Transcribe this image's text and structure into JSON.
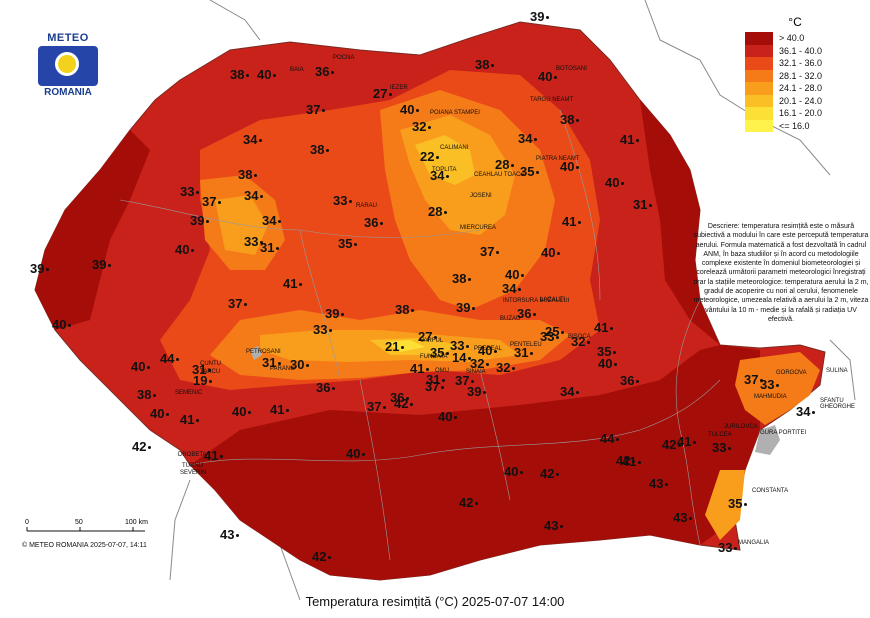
{
  "logo": {
    "top_text": "METEO",
    "bottom_text": "ROMANIA"
  },
  "legend": {
    "unit": "°C",
    "items": [
      {
        "label": "> 40.0",
        "color": "#a50d08"
      },
      {
        "label": "36.1 - 40.0",
        "color": "#c9221a"
      },
      {
        "label": "32.1 - 36.0",
        "color": "#ea4a18"
      },
      {
        "label": "28.1 - 32.0",
        "color": "#f57a18"
      },
      {
        "label": "24.1 - 28.0",
        "color": "#f99d1c"
      },
      {
        "label": "20.1 - 24.0",
        "color": "#fbbf26"
      },
      {
        "label": "16.1 - 20.0",
        "color": "#fde035"
      },
      {
        "label": "<= 16.0",
        "color": "#fff24a"
      }
    ]
  },
  "description": "Descriere: temperatura resimțită este o măsură subiectivă a modului în care este percepută temperatura aerului. Formula matematică a fost dezvoltată în cadrul ANM, în baza studiilor și în acord cu metodologiile complexe existente în domeniul biometeorologiei și corelează următorii parametri meteorologici înregistrați orar la stațiile meteorologice: temperatura aerului la 2 m, gradul de acoperire cu nori al cerului, fenomenele meteorologice, umezeala relativă a aerului la 2 m, viteza vântului la 10 m - medie și la rafală și radiația UV efectivă.",
  "title": "Temperatura resimțită (°C) 2025-07-07 14:00",
  "copyright": "© METEO ROMANIA 2025-07-07, 14:11",
  "scale": {
    "ticks": [
      "0",
      "50",
      "100 km"
    ]
  },
  "values": [
    "39",
    "40",
    "36",
    "38",
    "27",
    "38",
    "40",
    "37",
    "40",
    "32",
    "34",
    "38",
    "34",
    "38",
    "22",
    "41",
    "28",
    "40",
    "38",
    "34",
    "34",
    "35",
    "40",
    "31",
    "33",
    "37",
    "39",
    "34",
    "28",
    "41",
    "33",
    "36",
    "31",
    "35",
    "33",
    "37",
    "40",
    "40",
    "39",
    "39",
    "38",
    "41",
    "40",
    "34",
    "37",
    "39",
    "38",
    "36",
    "27",
    "41",
    "39",
    "33",
    "21",
    "35",
    "40",
    "33",
    "31",
    "33",
    "14",
    "40",
    "25",
    "32",
    "35",
    "40",
    "32",
    "41",
    "36",
    "31",
    "30",
    "37",
    "31",
    "32",
    "40",
    "44",
    "19",
    "36",
    "39",
    "37",
    "42",
    "37",
    "36",
    "34",
    "31",
    "38",
    "41",
    "40",
    "41",
    "40",
    "40",
    "44",
    "37",
    "33",
    "34",
    "33",
    "40",
    "42",
    "41",
    "42",
    "41",
    "41",
    "40",
    "35",
    "42",
    "42",
    "43",
    "42",
    "43",
    "43",
    "43",
    "42",
    "33"
  ],
  "city_labels": [
    "POCNA",
    "BAIA",
    "TURNU",
    "SEVERIN",
    "DROBETA",
    "CONSTANTA",
    "MANGALIA",
    "SULINA",
    "TULCEA",
    "GORGOVA",
    "MAHMUDIA",
    "JURILOVCA",
    "GURA PORTITEI",
    "SFANTU GHEORGHE",
    "CALIMANI",
    "POIANA STAMPEI",
    "TOPLITA",
    "CEAHLAU TOACA",
    "JOSENI",
    "MIERCUREA",
    "PREDEAL",
    "SINAIA",
    "OMU",
    "FUNDATA",
    "VARFUL",
    "PETROSANI",
    "PARANG",
    "CUNTU",
    "TARCU",
    "SEMENIC",
    "IEZER",
    "BOTOSANI",
    "TARGU NEAMT",
    "PIATRA NEAMT",
    "LACAUTI",
    "BUZAU",
    "PENTELEU",
    "INTORSURA BUZAULUI",
    "BISOCA",
    "RARAU"
  ]
}
